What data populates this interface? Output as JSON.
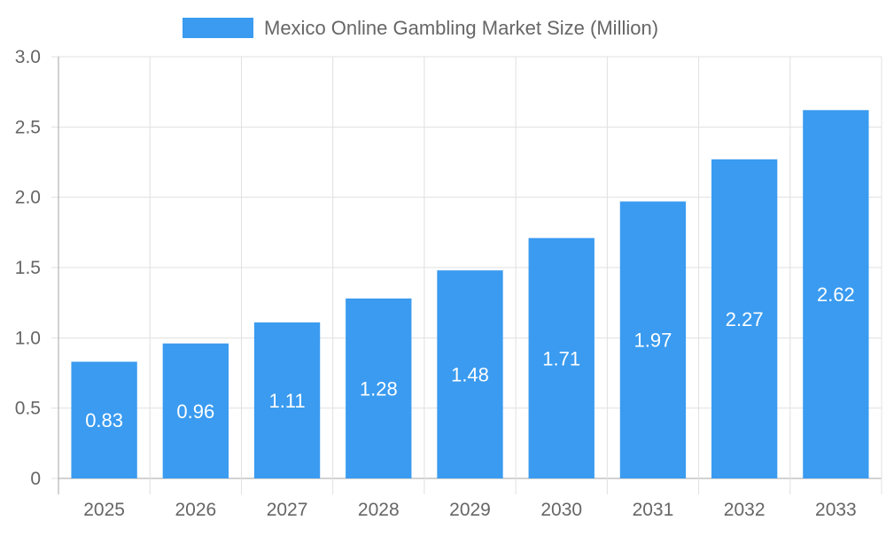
{
  "chart_data": {
    "type": "bar",
    "title": "",
    "xlabel": "",
    "ylabel": "",
    "categories": [
      "2025",
      "2026",
      "2027",
      "2028",
      "2029",
      "2030",
      "2031",
      "2032",
      "2033"
    ],
    "series": [
      {
        "name": "Mexico Online Gambling Market Size (Million)",
        "values": [
          0.83,
          0.96,
          1.11,
          1.28,
          1.48,
          1.71,
          1.97,
          2.27,
          2.62
        ]
      }
    ],
    "data_labels": [
      "0.83",
      "0.96",
      "1.11",
      "1.28",
      "1.48",
      "1.71",
      "1.97",
      "2.27",
      "2.62"
    ],
    "ylim": [
      0,
      3.0
    ],
    "yticks": [
      0,
      0.5,
      1.0,
      1.5,
      2.0,
      2.5,
      3.0
    ],
    "ytick_labels": [
      "0",
      "0.5",
      "1.0",
      "1.5",
      "2.0",
      "2.5",
      "3.0"
    ],
    "grid": true,
    "legend_position": "top-center",
    "colors": {
      "bar": "#3A9BF0",
      "grid": "#E0E0E0",
      "axis": "#A6A6A6",
      "tick_text": "#666666",
      "data_label": "#FFFFFF",
      "legend_text": "#666666"
    }
  }
}
